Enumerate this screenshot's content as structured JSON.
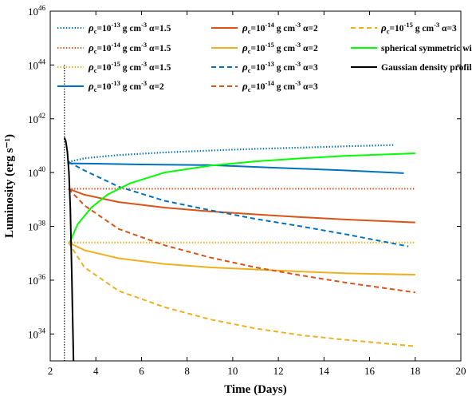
{
  "chart_data": {
    "type": "line",
    "title": "",
    "xlabel": "Time (Days)",
    "ylabel": "Luminosity (erg s⁻¹)",
    "xlim": [
      2,
      20
    ],
    "ylim": [
      1e+33,
      1e+46
    ],
    "yscale": "log",
    "x_ticks": [
      2,
      4,
      6,
      8,
      10,
      12,
      14,
      16,
      18,
      20
    ],
    "y_ticks": [
      {
        "value": 1e+34,
        "base": "10",
        "exp": "34"
      },
      {
        "value": 1e+36,
        "base": "10",
        "exp": "36"
      },
      {
        "value": 1e+38,
        "base": "10",
        "exp": "38"
      },
      {
        "value": 1e+40,
        "base": "10",
        "exp": "40"
      },
      {
        "value": 1e+42,
        "base": "10",
        "exp": "42"
      },
      {
        "value": 1e+44,
        "base": "10",
        "exp": "44"
      },
      {
        "value": 1e+46,
        "base": "10",
        "exp": "46"
      }
    ],
    "grid": false,
    "legend_position": "top",
    "vertical_line": {
      "x": 2.62
    },
    "series": [
      {
        "name": "ρc=10⁻¹³ g cm⁻³ α=1.5",
        "rho_exp": "-13",
        "alpha": "1.5",
        "color": "#0072BD",
        "style": "dotted",
        "x": [
          2.8,
          3.5,
          5,
          7,
          9,
          11,
          13,
          15,
          17.1
        ],
        "y": [
          2.5e+40,
          3.4e+40,
          4.5e+40,
          5.6e+40,
          6.6e+40,
          7.6e+40,
          8.5e+40,
          9.5e+40,
          1.06e+41
        ]
      },
      {
        "name": "ρc=10⁻¹⁴ g cm⁻³ α=1.5",
        "rho_exp": "-14",
        "alpha": "1.5",
        "color": "#D95319",
        "style": "dotted",
        "x": [
          2.8,
          18
        ],
        "y": [
          2.5e+39,
          2.5e+39
        ]
      },
      {
        "name": "ρc=10⁻¹⁵ g cm⁻³ α=1.5",
        "rho_exp": "-15",
        "alpha": "1.5",
        "color": "#EDB120",
        "style": "dotted",
        "x": [
          2.8,
          18
        ],
        "y": [
          2.5e+37,
          2.5e+37
        ]
      },
      {
        "name": "ρc=10⁻¹³ g cm⁻³ α=2",
        "rho_exp": "-13",
        "alpha": "2",
        "color": "#0072BD",
        "style": "solid",
        "x": [
          2.8,
          4,
          6,
          9,
          12,
          15,
          17.5
        ],
        "y": [
          2.2e+40,
          2.15e+40,
          2e+40,
          1.9e+40,
          1.5e+40,
          1.2e+40,
          9.5e+39
        ]
      },
      {
        "name": "ρc=10⁻¹⁴ g cm⁻³ α=2",
        "rho_exp": "-14",
        "alpha": "2",
        "color": "#D95319",
        "style": "solid",
        "x": [
          2.8,
          3.5,
          5,
          7,
          9,
          11,
          13,
          15,
          18
        ],
        "y": [
          2.5e+39,
          1.5e+39,
          8e+38,
          5e+38,
          3.6e+38,
          2.8e+38,
          2.2e+38,
          1.8e+38,
          1.4e+38
        ]
      },
      {
        "name": "ρc=10⁻¹⁵ g cm⁻³ α=2",
        "rho_exp": "-15",
        "alpha": "2",
        "color": "#EDB120",
        "style": "solid",
        "x": [
          2.8,
          3.5,
          5,
          7,
          9,
          11,
          13,
          15,
          18
        ],
        "y": [
          2.5e+37,
          1.3e+37,
          6.5e+36,
          4e+36,
          3e+36,
          2.5e+36,
          2.1e+36,
          1.8e+36,
          1.6e+36
        ]
      },
      {
        "name": "ρc=10⁻¹³ g cm⁻³ α=3",
        "rho_exp": "-13",
        "alpha": "3",
        "color": "#0072BD",
        "style": "dashed",
        "x": [
          2.8,
          3.5,
          5,
          7,
          9,
          11,
          13,
          15,
          17.7
        ],
        "y": [
          2.5e+40,
          1.2e+40,
          3e+39,
          9e+38,
          4e+38,
          1.9e+38,
          1e+38,
          5e+37,
          1.8e+37
        ]
      },
      {
        "name": "ρc=10⁻¹⁴ g cm⁻³ α=3",
        "rho_exp": "-14",
        "alpha": "3",
        "color": "#D95319",
        "style": "dashed",
        "x": [
          2.8,
          3.5,
          5,
          7,
          9,
          11,
          13,
          15,
          18
        ],
        "y": [
          2.5e+39,
          6e+38,
          8e+37,
          2e+37,
          7e+36,
          3e+36,
          1.5e+36,
          8e+35,
          3.5e+35
        ]
      },
      {
        "name": "ρc=10⁻¹⁵ g cm⁻³ α=3",
        "rho_exp": "-15",
        "alpha": "3",
        "color": "#EDB120",
        "style": "dashed",
        "x": [
          2.8,
          3.5,
          5,
          7,
          9,
          11,
          13,
          15,
          18
        ],
        "y": [
          2.5e+37,
          3e+36,
          4e+35,
          1e+35,
          3.5e+34,
          1.6e+34,
          9e+33,
          6e+33,
          3.5e+33
        ]
      },
      {
        "name": "spherical symmetric wind",
        "color": "#00FF00",
        "style": "solid",
        "x": [
          2.85,
          3.2,
          3.8,
          4.5,
          5.5,
          7,
          9,
          11,
          13,
          15,
          18
        ],
        "y": [
          2.5e+37,
          1.2e+38,
          5e+38,
          1.5e+39,
          4e+39,
          1e+40,
          1.8e+40,
          2.6e+40,
          3.4e+40,
          4.2e+40,
          5.2e+40
        ]
      },
      {
        "name": "Gaussian density profile",
        "color": "#000000",
        "style": "solid",
        "x": [
          2.62,
          2.68,
          2.75,
          2.82,
          2.88,
          2.95,
          3.02
        ],
        "y": [
          2e+41,
          1.5e+41,
          6e+40,
          1e+40,
          5e+38,
          1e+36,
          1e+33
        ]
      }
    ]
  }
}
